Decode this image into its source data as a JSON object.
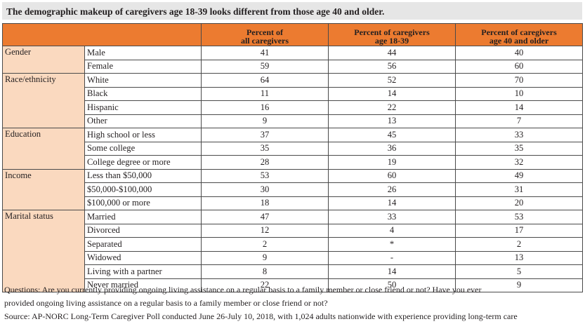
{
  "title": "The demographic makeup of caregivers age 18-39 looks different from those age 40 and older.",
  "headers": {
    "col1_line1": "Percent of",
    "col1_line2": "all caregivers",
    "col2_line1": "Percent of caregivers",
    "col2_line2": "age 18-39",
    "col3_line1": "Percent of caregivers",
    "col3_line2": "age 40 and older"
  },
  "groups": [
    {
      "category": "Gender",
      "rows": [
        {
          "label": "Male",
          "all": "41",
          "young": "44",
          "old": "40"
        },
        {
          "label": "Female",
          "all": "59",
          "young": "56",
          "old": "60"
        }
      ]
    },
    {
      "category": "Race/ethnicity",
      "rows": [
        {
          "label": "White",
          "all": "64",
          "young": "52",
          "old": "70"
        },
        {
          "label": "Black",
          "all": "11",
          "young": "14",
          "old": "10"
        },
        {
          "label": "Hispanic",
          "all": "16",
          "young": "22",
          "old": "14"
        },
        {
          "label": "Other",
          "all": "9",
          "young": "13",
          "old": "7"
        }
      ]
    },
    {
      "category": "Education",
      "rows": [
        {
          "label": "High school or less",
          "all": "37",
          "young": "45",
          "old": "33"
        },
        {
          "label": "Some college",
          "all": "35",
          "young": "36",
          "old": "35"
        },
        {
          "label": "College degree or more",
          "all": "28",
          "young": "19",
          "old": "32"
        }
      ]
    },
    {
      "category": "Income",
      "rows": [
        {
          "label": "Less than $50,000",
          "all": "53",
          "young": "60",
          "old": "49"
        },
        {
          "label": "$50,000-$100,000",
          "all": "30",
          "young": "26",
          "old": "31"
        },
        {
          "label": "$100,000 or more",
          "all": "18",
          "young": "14",
          "old": "20"
        }
      ]
    },
    {
      "category": "Marital status",
      "rows": [
        {
          "label": "Married",
          "all": "47",
          "young": "33",
          "old": "53"
        },
        {
          "label": "Divorced",
          "all": "12",
          "young": "4",
          "old": "17"
        },
        {
          "label": "Separated",
          "all": "2",
          "young": "*",
          "old": "2"
        },
        {
          "label": "Widowed",
          "all": "9",
          "young": "-",
          "old": "13"
        },
        {
          "label": "Living with a partner",
          "all": "8",
          "young": "14",
          "old": "5"
        },
        {
          "label": "Never married",
          "all": "22",
          "young": "50",
          "old": "9"
        }
      ]
    }
  ],
  "notes": {
    "questions_line1": "Questions: Are you currently providing ongoing living assistance on a regular basis to a family member or close friend or not? Have you ever",
    "questions_line2": "provided ongoing living assistance on a regular basis to a family member or close friend or not?",
    "source": "Source: AP-NORC Long-Term Caregiver Poll conducted June 26-July 10, 2018, with 1,024 adults nationwide with experience providing long-term care"
  }
}
